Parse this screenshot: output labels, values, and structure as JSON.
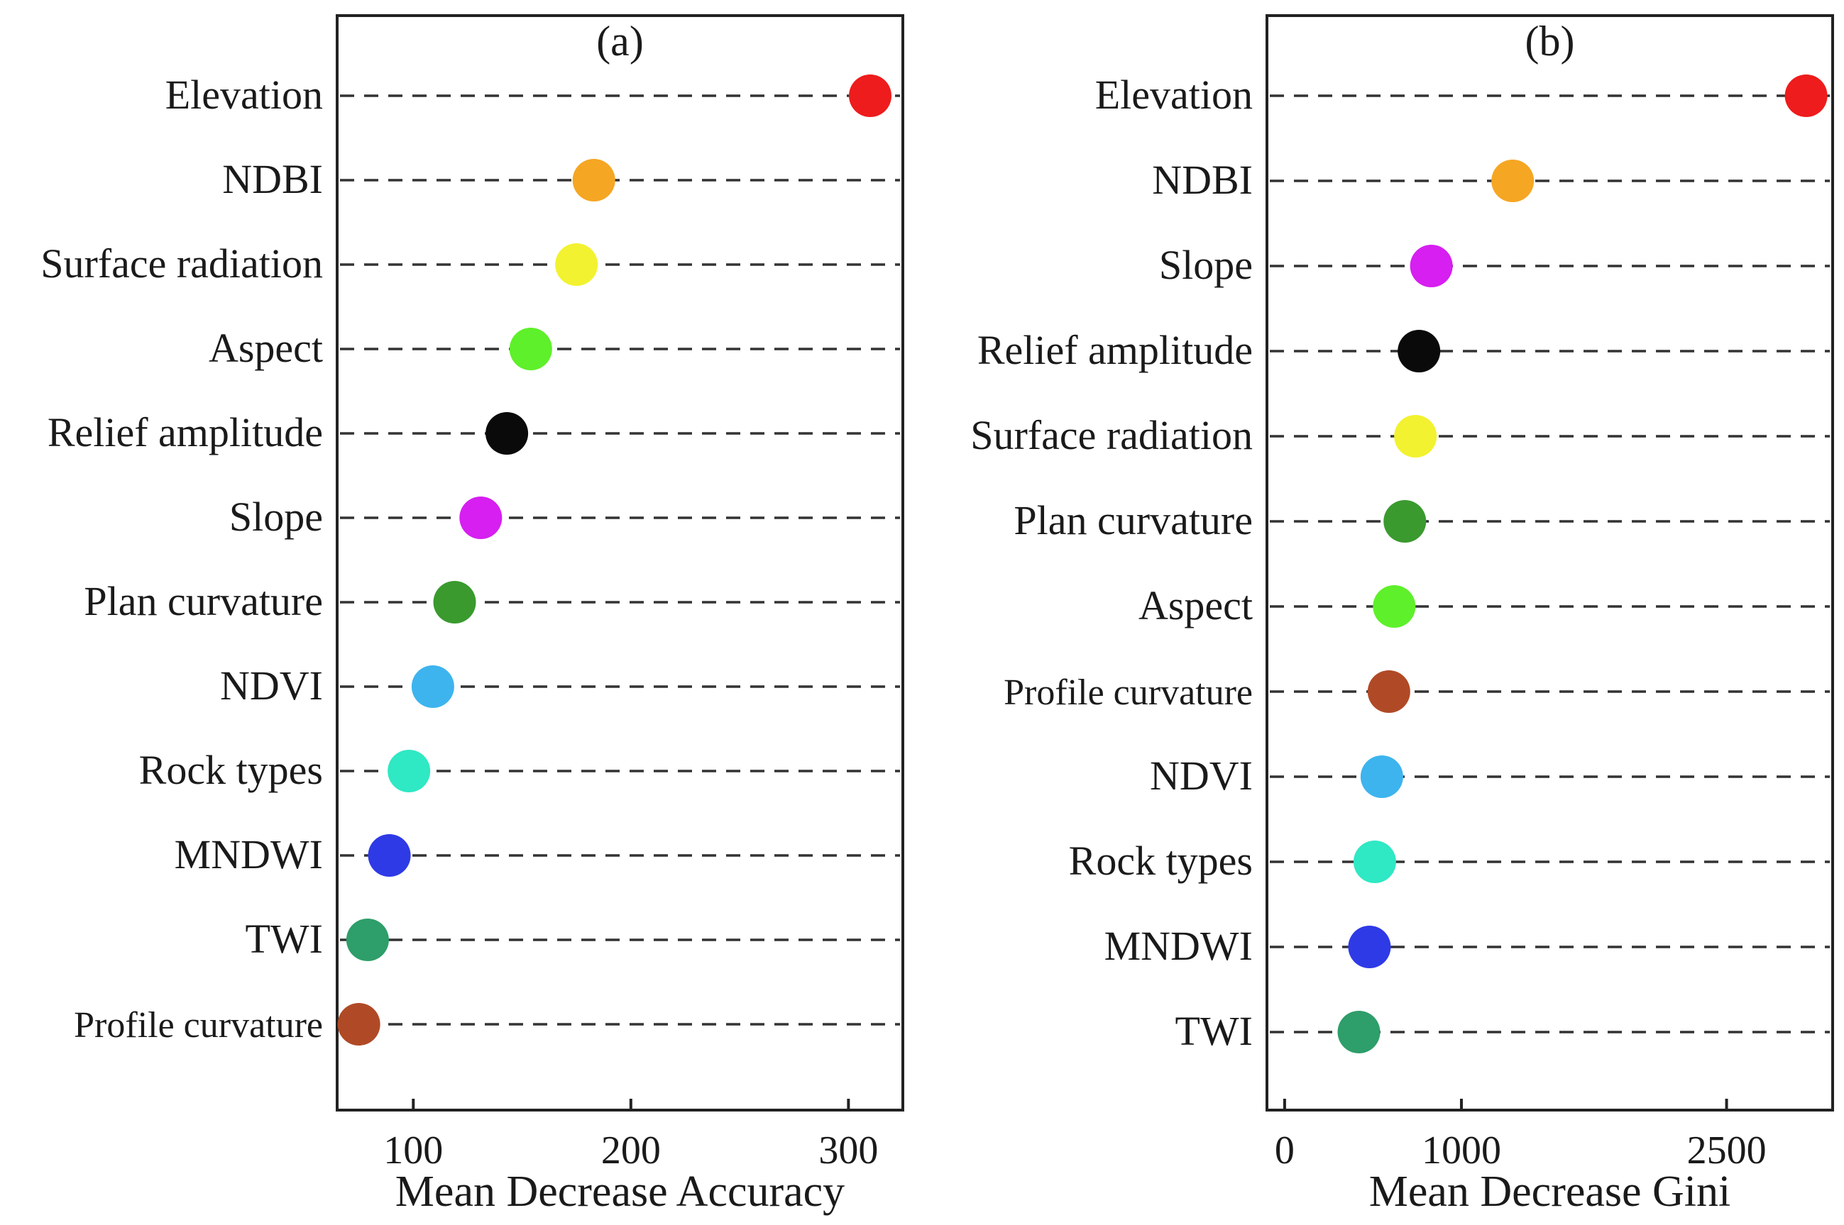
{
  "chart_data": [
    {
      "type": "scatter",
      "panel_label": "(a)",
      "xlabel": "Mean Decrease Accuracy",
      "ylabel": "",
      "xticks": [
        100,
        200,
        300
      ],
      "xlim": [
        65,
        325
      ],
      "grid": "dashed horizontal guides",
      "categories": [
        "Elevation",
        "NDBI",
        "Surface radiation",
        "Aspect",
        "Relief amplitude",
        "Slope",
        "Plan curvature",
        "NDVI",
        "Rock types",
        "MNDWI",
        "TWI",
        "Profile curvature"
      ],
      "values": [
        310,
        183,
        175,
        154,
        143,
        131,
        119,
        109,
        98,
        89,
        79,
        75
      ],
      "colors": [
        "#ee1c1c",
        "#f5a623",
        "#f2f230",
        "#5ef02a",
        "#0a0a0a",
        "#d61ff0",
        "#3a9a2e",
        "#3db4ee",
        "#2fe8c4",
        "#2e3ae6",
        "#2e9e6a",
        "#b04a26"
      ]
    },
    {
      "type": "scatter",
      "panel_label": "(b)",
      "xlabel": "Mean Decrease Gini",
      "ylabel": "",
      "xticks": [
        0,
        1000,
        2500
      ],
      "xlim": [
        -100,
        3100
      ],
      "grid": "dashed horizontal guides",
      "categories": [
        "Elevation",
        "NDBI",
        "Slope",
        "Relief amplitude",
        "Surface radiation",
        "Plan curvature",
        "Aspect",
        "Profile curvature",
        "NDVI",
        "Rock types",
        "MNDWI",
        "TWI"
      ],
      "values": [
        2950,
        1290,
        830,
        760,
        740,
        680,
        620,
        590,
        550,
        510,
        480,
        420
      ],
      "colors": [
        "#ee1c1c",
        "#f5a623",
        "#d61ff0",
        "#0a0a0a",
        "#f2f230",
        "#3a9a2e",
        "#5ef02a",
        "#b04a26",
        "#3db4ee",
        "#2fe8c4",
        "#2e3ae6",
        "#2e9e6a"
      ]
    }
  ]
}
